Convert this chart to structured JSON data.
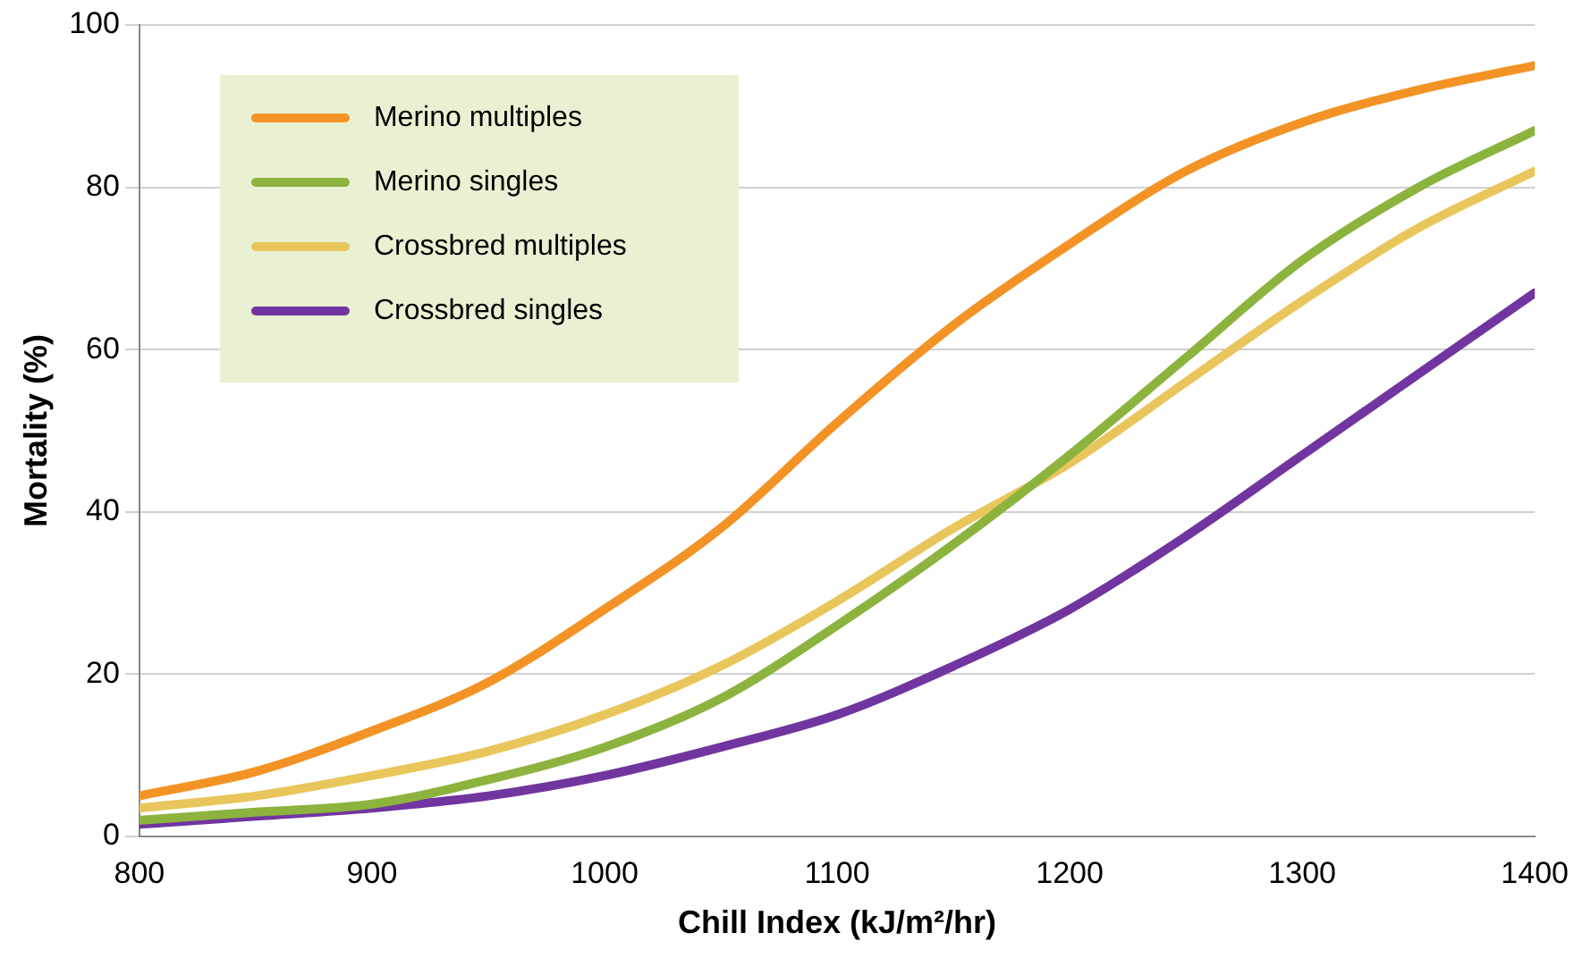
{
  "chart_data": {
    "type": "line",
    "xlabel": "Chill Index (kJ/m²/hr)",
    "ylabel": "Mortality (%)",
    "x": [
      800,
      850,
      900,
      950,
      1000,
      1050,
      1100,
      1150,
      1200,
      1250,
      1300,
      1350,
      1400
    ],
    "series": [
      {
        "name": "Merino multiples",
        "color": "#f39325",
        "values": [
          5,
          8,
          13,
          19,
          28,
          38,
          51,
          63,
          73,
          82,
          88,
          92,
          95
        ]
      },
      {
        "name": "Merino singles",
        "color": "#8db33f",
        "values": [
          2,
          3,
          4,
          7,
          11,
          17,
          26,
          36,
          47,
          59,
          71,
          80,
          87
        ]
      },
      {
        "name": "Crossbred multiples",
        "color": "#e9c65c",
        "values": [
          3.5,
          5,
          7.5,
          10.5,
          15,
          21,
          29,
          38,
          46,
          56,
          66,
          75,
          82
        ]
      },
      {
        "name": "Crossbred singles",
        "color": "#7135a0",
        "values": [
          1.5,
          2.5,
          3.5,
          5,
          7.5,
          11,
          15,
          21,
          28,
          37,
          47,
          57,
          67
        ]
      }
    ],
    "xlim": [
      800,
      1400
    ],
    "xticks": [
      800,
      900,
      1000,
      1100,
      1200,
      1300,
      1400
    ],
    "ylim": [
      0,
      100
    ],
    "yticks": [
      0,
      20,
      40,
      60,
      80,
      100
    ],
    "grid": "y",
    "legend": "top left",
    "marker": "none",
    "line_style": "solid"
  }
}
